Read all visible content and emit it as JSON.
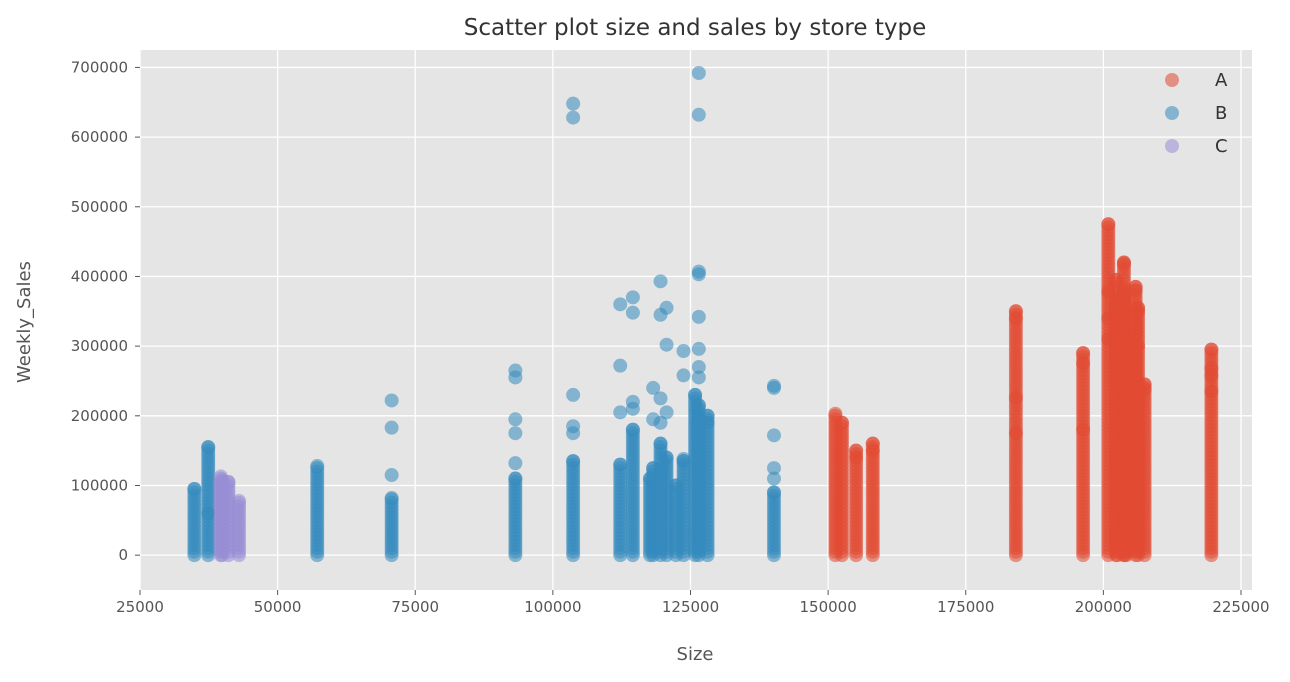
{
  "chart_data": {
    "type": "scatter",
    "title": "Scatter plot size and sales by store type",
    "xlabel": "Size",
    "ylabel": "Weekly_Sales",
    "xlim": [
      25000,
      227000
    ],
    "ylim": [
      -50000,
      725000
    ],
    "xticks": [
      25000,
      50000,
      75000,
      100000,
      125000,
      150000,
      175000,
      200000,
      225000
    ],
    "xtick_labels": [
      "25000",
      "50000",
      "75000",
      "100000",
      "125000",
      "150000",
      "175000",
      "200000",
      "225000"
    ],
    "yticks": [
      0,
      100000,
      200000,
      300000,
      400000,
      500000,
      600000,
      700000
    ],
    "ytick_labels": [
      "0",
      "100000",
      "200000",
      "300000",
      "400000",
      "500000",
      "600000",
      "700000"
    ],
    "grid": true,
    "legend_position": "top-right",
    "series": [
      {
        "name": "A",
        "color": "#E24A33",
        "columns": [
          {
            "x": 151315,
            "max": 203000
          },
          {
            "x": 152513,
            "max": 190000
          },
          {
            "x": 155078,
            "max": 150000
          },
          {
            "x": 158114,
            "max": 160000
          },
          {
            "x": 184109,
            "max": 350000
          },
          {
            "x": 196321,
            "max": 290000
          },
          {
            "x": 200898,
            "max": 475000
          },
          {
            "x": 202307,
            "max": 395000
          },
          {
            "x": 202505,
            "max": 365000
          },
          {
            "x": 203742,
            "max": 420000
          },
          {
            "x": 203819,
            "max": 380000
          },
          {
            "x": 204184,
            "max": 310000
          },
          {
            "x": 205863,
            "max": 385000
          },
          {
            "x": 206302,
            "max": 355000
          },
          {
            "x": 207499,
            "max": 245000
          },
          {
            "x": 219622,
            "max": 295000
          }
        ],
        "outliers": [
          {
            "x": 184109,
            "y": 340000
          },
          {
            "x": 184109,
            "y": 226000
          },
          {
            "x": 184109,
            "y": 175000
          },
          {
            "x": 196321,
            "y": 275000
          },
          {
            "x": 196321,
            "y": 180000
          },
          {
            "x": 200898,
            "y": 378000
          },
          {
            "x": 200898,
            "y": 340000
          },
          {
            "x": 200898,
            "y": 310000
          },
          {
            "x": 202307,
            "y": 350000
          },
          {
            "x": 202307,
            "y": 300000
          },
          {
            "x": 203742,
            "y": 418000
          },
          {
            "x": 203742,
            "y": 340000
          },
          {
            "x": 203742,
            "y": 290000
          },
          {
            "x": 204184,
            "y": 270000
          },
          {
            "x": 205863,
            "y": 380000
          },
          {
            "x": 205863,
            "y": 320000
          },
          {
            "x": 205863,
            "y": 280000
          },
          {
            "x": 206302,
            "y": 350000
          },
          {
            "x": 206302,
            "y": 300000
          },
          {
            "x": 207499,
            "y": 238000
          },
          {
            "x": 219622,
            "y": 268000
          },
          {
            "x": 219622,
            "y": 258000
          },
          {
            "x": 219622,
            "y": 235000
          },
          {
            "x": 158114,
            "y": 150000
          },
          {
            "x": 155078,
            "y": 140000
          }
        ]
      },
      {
        "name": "B",
        "color": "#348ABD",
        "columns": [
          {
            "x": 34875,
            "max": 95000
          },
          {
            "x": 37392,
            "max": 155000
          },
          {
            "x": 57197,
            "max": 128000
          },
          {
            "x": 70713,
            "max": 82000
          },
          {
            "x": 93188,
            "max": 110000
          },
          {
            "x": 103681,
            "max": 135000
          },
          {
            "x": 112238,
            "max": 130000
          },
          {
            "x": 114533,
            "max": 180000
          },
          {
            "x": 117649,
            "max": 110000
          },
          {
            "x": 118221,
            "max": 125000
          },
          {
            "x": 119557,
            "max": 160000
          },
          {
            "x": 120653,
            "max": 140000
          },
          {
            "x": 122375,
            "max": 100000
          },
          {
            "x": 123737,
            "max": 135000
          },
          {
            "x": 125833,
            "max": 230000
          },
          {
            "x": 126512,
            "max": 215000
          },
          {
            "x": 128107,
            "max": 200000
          },
          {
            "x": 140167,
            "max": 90000
          }
        ],
        "outliers": [
          {
            "x": 70713,
            "y": 222000
          },
          {
            "x": 70713,
            "y": 183000
          },
          {
            "x": 70713,
            "y": 115000
          },
          {
            "x": 93188,
            "y": 265000
          },
          {
            "x": 93188,
            "y": 255000
          },
          {
            "x": 93188,
            "y": 195000
          },
          {
            "x": 93188,
            "y": 175000
          },
          {
            "x": 93188,
            "y": 132000
          },
          {
            "x": 103681,
            "y": 648000
          },
          {
            "x": 103681,
            "y": 628000
          },
          {
            "x": 103681,
            "y": 230000
          },
          {
            "x": 103681,
            "y": 185000
          },
          {
            "x": 103681,
            "y": 175000
          },
          {
            "x": 112238,
            "y": 360000
          },
          {
            "x": 112238,
            "y": 272000
          },
          {
            "x": 112238,
            "y": 205000
          },
          {
            "x": 114533,
            "y": 370000
          },
          {
            "x": 114533,
            "y": 348000
          },
          {
            "x": 114533,
            "y": 220000
          },
          {
            "x": 114533,
            "y": 210000
          },
          {
            "x": 118221,
            "y": 240000
          },
          {
            "x": 118221,
            "y": 195000
          },
          {
            "x": 119557,
            "y": 393000
          },
          {
            "x": 119557,
            "y": 345000
          },
          {
            "x": 119557,
            "y": 225000
          },
          {
            "x": 119557,
            "y": 190000
          },
          {
            "x": 120653,
            "y": 355000
          },
          {
            "x": 120653,
            "y": 302000
          },
          {
            "x": 120653,
            "y": 205000
          },
          {
            "x": 123737,
            "y": 293000
          },
          {
            "x": 123737,
            "y": 258000
          },
          {
            "x": 123737,
            "y": 138000
          },
          {
            "x": 126512,
            "y": 692000
          },
          {
            "x": 126512,
            "y": 632000
          },
          {
            "x": 126512,
            "y": 407000
          },
          {
            "x": 126512,
            "y": 403000
          },
          {
            "x": 126512,
            "y": 342000
          },
          {
            "x": 126512,
            "y": 296000
          },
          {
            "x": 126512,
            "y": 270000
          },
          {
            "x": 126512,
            "y": 255000
          },
          {
            "x": 128107,
            "y": 190000
          },
          {
            "x": 140167,
            "y": 243000
          },
          {
            "x": 140167,
            "y": 240000
          },
          {
            "x": 140167,
            "y": 172000
          },
          {
            "x": 140167,
            "y": 125000
          },
          {
            "x": 140167,
            "y": 110000
          },
          {
            "x": 37392,
            "y": 60000
          }
        ]
      },
      {
        "name": "C",
        "color": "#988ED5",
        "columns": [
          {
            "x": 39690,
            "max": 113000
          },
          {
            "x": 39910,
            "max": 108000
          },
          {
            "x": 41062,
            "max": 105000
          },
          {
            "x": 42988,
            "max": 78000
          }
        ],
        "outliers": []
      }
    ]
  }
}
